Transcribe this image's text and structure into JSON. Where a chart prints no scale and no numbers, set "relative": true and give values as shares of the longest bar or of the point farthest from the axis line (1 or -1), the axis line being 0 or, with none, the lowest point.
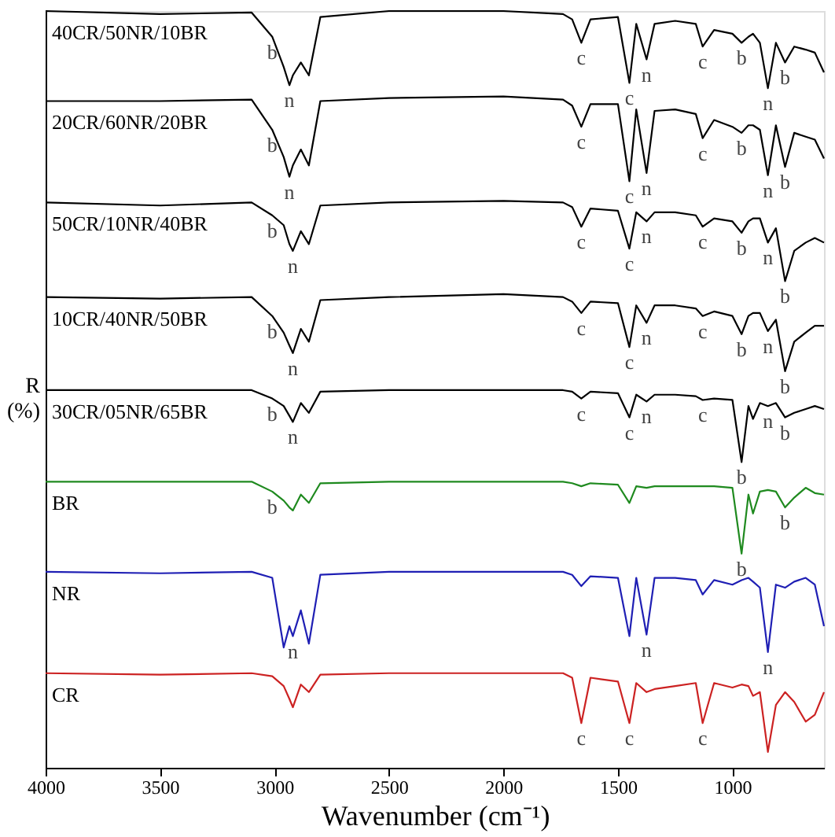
{
  "chart_data": {
    "type": "line",
    "relative": true,
    "xlabel": "Wavenumber (cm⁻¹)",
    "ylabel": "R (%)",
    "xlim": [
      4000,
      600
    ],
    "xticks": [
      4000,
      3500,
      3000,
      2500,
      2000,
      1500,
      1000
    ],
    "grid": false,
    "line_style": "solid",
    "marker": "none",
    "x": [
      4000,
      3500,
      3100,
      3010,
      2960,
      2935,
      2920,
      2885,
      2850,
      2800,
      2500,
      2000,
      1740,
      1700,
      1660,
      1620,
      1500,
      1450,
      1420,
      1375,
      1340,
      1250,
      1160,
      1130,
      1080,
      1000,
      960,
      930,
      910,
      880,
      845,
      810,
      770,
      730,
      680,
      640,
      600
    ],
    "series": [
      {
        "name": "40CR/50NR/10BR",
        "color": "#000000",
        "values": [
          1.0,
          0.996,
          0.998,
          0.966,
          0.926,
          0.902,
          0.915,
          0.932,
          0.915,
          0.992,
          1.0,
          1.0,
          0.996,
          0.989,
          0.958,
          0.989,
          0.992,
          0.905,
          0.983,
          0.936,
          0.983,
          0.987,
          0.983,
          0.953,
          0.975,
          0.97,
          0.958,
          0.966,
          0.97,
          0.958,
          0.898,
          0.958,
          0.932,
          0.953,
          0.949,
          0.945,
          0.919
        ]
      },
      {
        "name": "20CR/60NR/20BR",
        "color": "#000000",
        "values": [
          0.881,
          0.881,
          0.883,
          0.843,
          0.807,
          0.781,
          0.796,
          0.817,
          0.796,
          0.881,
          0.885,
          0.887,
          0.883,
          0.875,
          0.847,
          0.877,
          0.877,
          0.775,
          0.87,
          0.786,
          0.868,
          0.87,
          0.864,
          0.832,
          0.856,
          0.847,
          0.839,
          0.849,
          0.849,
          0.843,
          0.783,
          0.849,
          0.794,
          0.839,
          0.834,
          0.83,
          0.805
        ]
      },
      {
        "name": "50CR/10NR/40BR",
        "color": "#000000",
        "values": [
          0.747,
          0.743,
          0.747,
          0.73,
          0.717,
          0.692,
          0.683,
          0.709,
          0.692,
          0.743,
          0.747,
          0.749,
          0.747,
          0.741,
          0.715,
          0.739,
          0.736,
          0.686,
          0.734,
          0.722,
          0.734,
          0.734,
          0.73,
          0.715,
          0.726,
          0.722,
          0.707,
          0.722,
          0.726,
          0.726,
          0.694,
          0.713,
          0.643,
          0.683,
          0.694,
          0.7,
          0.694
        ]
      },
      {
        "name": "10CR/40NR/50BR",
        "color": "#000000",
        "values": [
          0.622,
          0.62,
          0.622,
          0.597,
          0.575,
          0.558,
          0.548,
          0.58,
          0.563,
          0.618,
          0.622,
          0.626,
          0.622,
          0.616,
          0.601,
          0.616,
          0.614,
          0.556,
          0.611,
          0.588,
          0.611,
          0.611,
          0.607,
          0.597,
          0.603,
          0.597,
          0.573,
          0.597,
          0.601,
          0.601,
          0.577,
          0.592,
          0.524,
          0.563,
          0.575,
          0.584,
          0.584
        ]
      },
      {
        "name": "30CR/05NR/65BR",
        "color": "#000000",
        "values": [
          0.499,
          0.499,
          0.499,
          0.488,
          0.478,
          0.465,
          0.457,
          0.482,
          0.469,
          0.497,
          0.499,
          0.499,
          0.499,
          0.497,
          0.488,
          0.497,
          0.495,
          0.463,
          0.493,
          0.484,
          0.493,
          0.493,
          0.491,
          0.486,
          0.488,
          0.486,
          0.404,
          0.478,
          0.461,
          0.482,
          0.478,
          0.482,
          0.463,
          0.469,
          0.474,
          0.478,
          0.474
        ]
      },
      {
        "name": "BR",
        "color": "#1f8a1f",
        "values": [
          0.378,
          0.378,
          0.378,
          0.365,
          0.353,
          0.344,
          0.34,
          0.361,
          0.35,
          0.376,
          0.378,
          0.378,
          0.378,
          0.376,
          0.372,
          0.376,
          0.374,
          0.35,
          0.372,
          0.37,
          0.372,
          0.372,
          0.372,
          0.372,
          0.372,
          0.37,
          0.283,
          0.361,
          0.336,
          0.365,
          0.367,
          0.365,
          0.344,
          0.357,
          0.37,
          0.363,
          0.361
        ]
      },
      {
        "name": "NR",
        "color": "#1f1fb4",
        "values": [
          0.259,
          0.257,
          0.259,
          0.251,
          0.159,
          0.187,
          0.174,
          0.208,
          0.164,
          0.255,
          0.259,
          0.259,
          0.259,
          0.255,
          0.24,
          0.253,
          0.251,
          0.174,
          0.251,
          0.176,
          0.251,
          0.251,
          0.248,
          0.229,
          0.248,
          0.242,
          0.248,
          0.251,
          0.246,
          0.238,
          0.153,
          0.242,
          0.238,
          0.246,
          0.251,
          0.242,
          0.187
        ]
      },
      {
        "name": "CR",
        "color": "#cc2222",
        "values": [
          0.125,
          0.123,
          0.125,
          0.121,
          0.108,
          0.091,
          0.08,
          0.11,
          0.1,
          0.123,
          0.125,
          0.125,
          0.125,
          0.119,
          0.059,
          0.119,
          0.114,
          0.059,
          0.112,
          0.1,
          0.104,
          0.108,
          0.112,
          0.059,
          0.112,
          0.106,
          0.11,
          0.108,
          0.095,
          0.1,
          0.021,
          0.083,
          0.1,
          0.087,
          0.061,
          0.07,
          0.1
        ]
      }
    ],
    "annotations": [
      {
        "text": "b",
        "x": 3010,
        "y": 0.966
      },
      {
        "text": "n",
        "x": 2935,
        "y": 0.902
      },
      {
        "text": "c",
        "x": 1660,
        "y": 0.958
      },
      {
        "text": "c",
        "x": 1450,
        "y": 0.905
      },
      {
        "text": "n",
        "x": 1375,
        "y": 0.936
      },
      {
        "text": "c",
        "x": 1130,
        "y": 0.953
      },
      {
        "text": "b",
        "x": 960,
        "y": 0.958
      },
      {
        "text": "n",
        "x": 845,
        "y": 0.898
      },
      {
        "text": "b",
        "x": 770,
        "y": 0.932
      },
      {
        "text": "b",
        "x": 3010,
        "y": 0.843
      },
      {
        "text": "n",
        "x": 2935,
        "y": 0.781
      },
      {
        "text": "c",
        "x": 1660,
        "y": 0.847
      },
      {
        "text": "c",
        "x": 1450,
        "y": 0.775
      },
      {
        "text": "n",
        "x": 1375,
        "y": 0.786
      },
      {
        "text": "c",
        "x": 1130,
        "y": 0.832
      },
      {
        "text": "b",
        "x": 960,
        "y": 0.839
      },
      {
        "text": "n",
        "x": 845,
        "y": 0.783
      },
      {
        "text": "b",
        "x": 770,
        "y": 0.794
      },
      {
        "text": "b",
        "x": 3010,
        "y": 0.73
      },
      {
        "text": "n",
        "x": 2920,
        "y": 0.683
      },
      {
        "text": "c",
        "x": 1660,
        "y": 0.715
      },
      {
        "text": "c",
        "x": 1450,
        "y": 0.686
      },
      {
        "text": "n",
        "x": 1375,
        "y": 0.722
      },
      {
        "text": "c",
        "x": 1130,
        "y": 0.715
      },
      {
        "text": "b",
        "x": 960,
        "y": 0.707
      },
      {
        "text": "n",
        "x": 845,
        "y": 0.694
      },
      {
        "text": "b",
        "x": 770,
        "y": 0.643
      },
      {
        "text": "b",
        "x": 3010,
        "y": 0.597
      },
      {
        "text": "n",
        "x": 2920,
        "y": 0.548
      },
      {
        "text": "c",
        "x": 1660,
        "y": 0.601
      },
      {
        "text": "c",
        "x": 1450,
        "y": 0.556
      },
      {
        "text": "n",
        "x": 1375,
        "y": 0.588
      },
      {
        "text": "c",
        "x": 1130,
        "y": 0.597
      },
      {
        "text": "b",
        "x": 960,
        "y": 0.573
      },
      {
        "text": "n",
        "x": 845,
        "y": 0.577
      },
      {
        "text": "b",
        "x": 770,
        "y": 0.524
      },
      {
        "text": "b",
        "x": 3010,
        "y": 0.488
      },
      {
        "text": "n",
        "x": 2920,
        "y": 0.457
      },
      {
        "text": "c",
        "x": 1660,
        "y": 0.488
      },
      {
        "text": "c",
        "x": 1450,
        "y": 0.463
      },
      {
        "text": "n",
        "x": 1375,
        "y": 0.484
      },
      {
        "text": "c",
        "x": 1130,
        "y": 0.486
      },
      {
        "text": "b",
        "x": 960,
        "y": 0.404
      },
      {
        "text": "n",
        "x": 845,
        "y": 0.478
      },
      {
        "text": "b",
        "x": 770,
        "y": 0.463
      },
      {
        "text": "b",
        "x": 3010,
        "y": 0.365
      },
      {
        "text": "b",
        "x": 960,
        "y": 0.283
      },
      {
        "text": "b",
        "x": 770,
        "y": 0.344
      },
      {
        "text": "n",
        "x": 2920,
        "y": 0.174
      },
      {
        "text": "n",
        "x": 1375,
        "y": 0.176
      },
      {
        "text": "n",
        "x": 845,
        "y": 0.153
      },
      {
        "text": "c",
        "x": 1660,
        "y": 0.059
      },
      {
        "text": "c",
        "x": 1450,
        "y": 0.059
      },
      {
        "text": "c",
        "x": 1130,
        "y": 0.059
      }
    ]
  }
}
